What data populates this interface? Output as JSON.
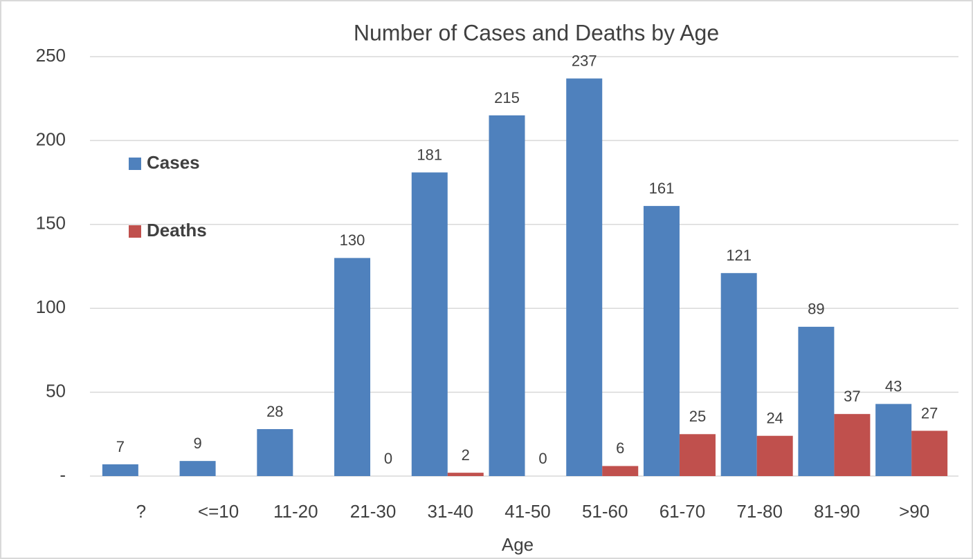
{
  "chart_data": {
    "type": "bar",
    "title": "Number of Cases and Deaths by Age",
    "x_label": "Age",
    "categories": [
      "?",
      "<=10",
      "11-20",
      "21-30",
      "31-40",
      "41-50",
      "51-60",
      "61-70",
      "71-80",
      "81-90",
      ">90"
    ],
    "series": [
      {
        "name": "Cases",
        "color": "#4f81bd",
        "values": [
          7,
          9,
          28,
          130,
          181,
          215,
          237,
          161,
          121,
          89,
          43
        ]
      },
      {
        "name": "Deaths",
        "color": "#c0504d",
        "values": [
          null,
          null,
          null,
          0,
          2,
          0,
          6,
          25,
          24,
          37,
          27
        ]
      }
    ],
    "ylim": [
      0,
      250
    ],
    "yticks": [
      {
        "value": 0,
        "label": "-"
      },
      50,
      100,
      150,
      200,
      250
    ],
    "grid": true,
    "legend": "left",
    "data_labels": true
  }
}
